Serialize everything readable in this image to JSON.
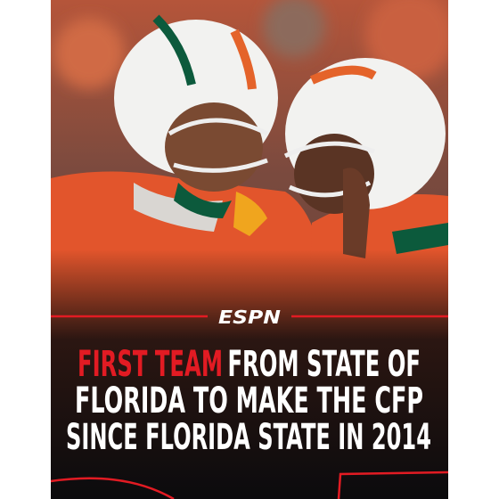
{
  "logo": "ESPN",
  "headline": {
    "highlight": "FIRST TEAM",
    "line1_rest": "FROM STATE OF",
    "line2": "FLORIDA TO MAKE THE CFP",
    "line3": "SINCE FLORIDA STATE IN 2014"
  }
}
